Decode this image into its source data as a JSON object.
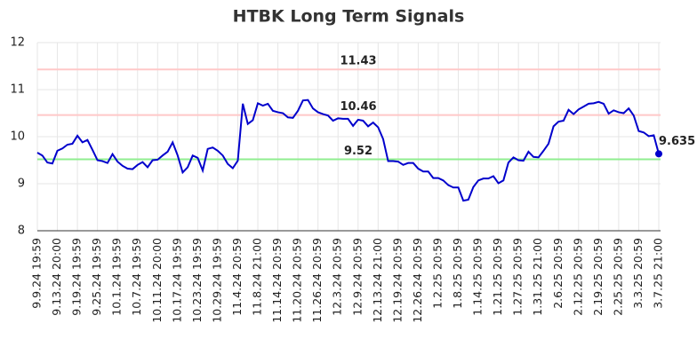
{
  "chart_data": {
    "type": "line",
    "title": "HTBK Long Term Signals",
    "categories": [
      "9.9.24 19:59",
      null,
      null,
      null,
      "9.13.24 20:00",
      null,
      null,
      null,
      "9.19.24 19:59",
      null,
      null,
      null,
      "9.25.24 19:59",
      null,
      null,
      null,
      "10.1.24 19:59",
      null,
      null,
      null,
      "10.7.24 19:59",
      null,
      null,
      null,
      "10.11.24 20:00",
      null,
      null,
      null,
      "10.17.24 19:59",
      null,
      null,
      null,
      "10.23.24 19:59",
      null,
      null,
      null,
      "10.29.24 19:59",
      null,
      null,
      null,
      "11.4.24 20:59",
      null,
      null,
      null,
      "11.8.24 21:00",
      null,
      null,
      null,
      "11.14.24 20:59",
      null,
      null,
      null,
      "11.20.24 20:59",
      null,
      null,
      null,
      "11.26.24 20:59",
      null,
      null,
      null,
      "12.3.24 20:59",
      null,
      null,
      null,
      "12.9.24 20:59",
      null,
      null,
      null,
      "12.13.24 21:00",
      null,
      null,
      null,
      "12.19.24 20:59",
      null,
      null,
      null,
      "12.26.24 20:59",
      null,
      null,
      null,
      "1.2.25 20:59",
      null,
      null,
      null,
      "1.8.25 20:59",
      null,
      null,
      null,
      "1.14.25 20:59",
      null,
      null,
      null,
      "1.21.25 20:59",
      null,
      null,
      null,
      "1.27.25 20:59",
      null,
      null,
      null,
      "1.31.25 21:00",
      null,
      null,
      null,
      "2.6.25 20:59",
      null,
      null,
      null,
      "2.12.25 20:59",
      null,
      null,
      null,
      "2.19.25 20:59",
      null,
      null,
      null,
      "2.25.25 20:59",
      null,
      null,
      null,
      "3.3.25 20:59",
      null,
      null,
      null,
      "3.7.25 21:00"
    ],
    "series": [
      {
        "color": "#0000cc",
        "values": [
          9.66,
          9.6,
          9.45,
          9.43,
          9.7,
          9.75,
          9.83,
          9.85,
          10.02,
          9.88,
          9.93,
          9.72,
          9.5,
          9.48,
          9.44,
          9.63,
          9.47,
          9.38,
          9.32,
          9.31,
          9.4,
          9.46,
          9.35,
          9.5,
          9.51,
          9.6,
          9.68,
          9.88,
          9.6,
          9.24,
          9.35,
          9.6,
          9.55,
          9.28,
          9.74,
          9.77,
          9.7,
          9.6,
          9.42,
          9.33,
          9.49,
          10.7,
          10.27,
          10.35,
          10.71,
          10.66,
          10.7,
          10.55,
          10.52,
          10.5,
          10.41,
          10.4,
          10.55,
          10.77,
          10.78,
          10.6,
          10.52,
          10.48,
          10.45,
          10.34,
          10.39,
          10.38,
          10.38,
          10.23,
          10.36,
          10.34,
          10.22,
          10.3,
          10.2,
          9.95,
          9.48,
          9.48,
          9.47,
          9.4,
          9.44,
          9.44,
          9.32,
          9.26,
          9.26,
          9.12,
          9.12,
          9.07,
          8.97,
          8.92,
          8.92,
          8.64,
          8.66,
          8.93,
          9.07,
          9.11,
          9.11,
          9.16,
          9.01,
          9.07,
          9.45,
          9.56,
          9.5,
          9.49,
          9.68,
          9.57,
          9.56,
          9.7,
          9.85,
          10.22,
          10.32,
          10.34,
          10.57,
          10.48,
          10.58,
          10.64,
          10.7,
          10.71,
          10.74,
          10.7,
          10.49,
          10.56,
          10.52,
          10.5,
          10.6,
          10.45,
          10.12,
          10.09,
          10.01,
          10.03,
          9.635
        ]
      }
    ],
    "levels": [
      {
        "value": 11.43,
        "color": "#ffc8c8",
        "text_color": "#8b0000"
      },
      {
        "value": 10.46,
        "color": "#ffc8c8",
        "text_color": "#8b0000"
      },
      {
        "value": 9.52,
        "color": "#90ee90",
        "text_color": "#006400"
      }
    ],
    "label_last_point": true,
    "ylim": [
      8,
      12
    ],
    "yticks": [
      8,
      9,
      10,
      11,
      12
    ],
    "grid": true
  }
}
